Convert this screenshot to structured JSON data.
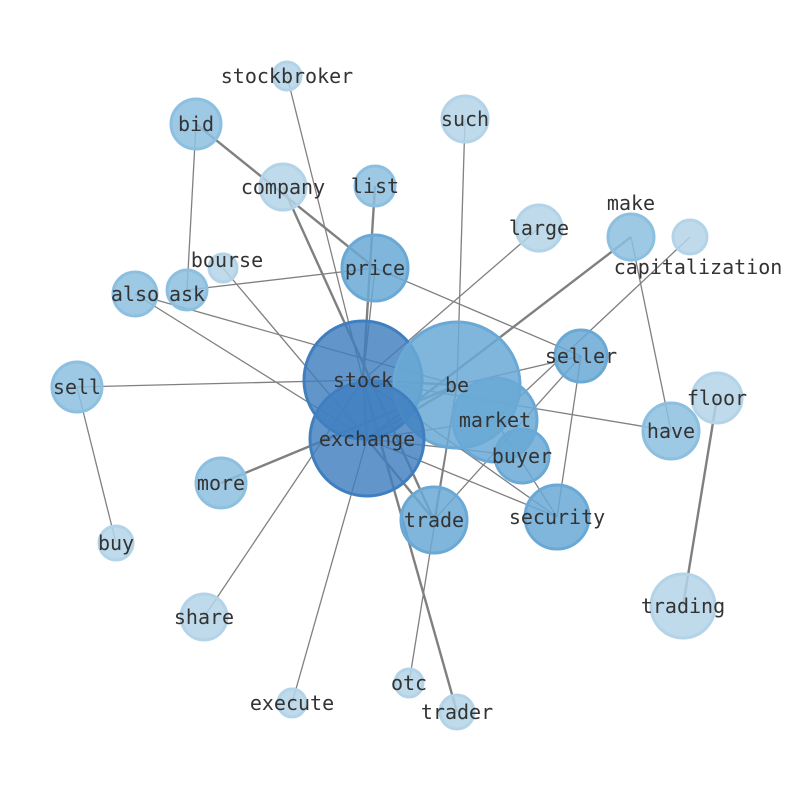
{
  "nodes": [
    "stockbroker",
    "bid",
    "such",
    "company",
    "list",
    "large",
    "make",
    "capitalization",
    "bourse",
    "price",
    "ask",
    "also",
    "sell",
    "stock",
    "be",
    "seller",
    "floor",
    "market",
    "have",
    "exchange",
    "buyer",
    "more",
    "security",
    "trade",
    "buy",
    "trading",
    "share",
    "otc",
    "execute",
    "trader"
  ],
  "edges": [
    [
      "stockbroker",
      "stock"
    ],
    [
      "bid",
      "price"
    ],
    [
      "bid",
      "ask"
    ],
    [
      "such",
      "be"
    ],
    [
      "company",
      "trade"
    ],
    [
      "list",
      "stock"
    ],
    [
      "large",
      "stock"
    ],
    [
      "make",
      "exchange"
    ],
    [
      "make",
      "have"
    ],
    [
      "capitalization",
      "market"
    ],
    [
      "bourse",
      "exchange"
    ],
    [
      "price",
      "ask"
    ],
    [
      "price",
      "stock"
    ],
    [
      "price",
      "seller"
    ],
    [
      "also",
      "be"
    ],
    [
      "also",
      "exchange"
    ],
    [
      "sell",
      "stock"
    ],
    [
      "sell",
      "buy"
    ],
    [
      "seller",
      "be"
    ],
    [
      "seller",
      "security"
    ],
    [
      "seller",
      "trade"
    ],
    [
      "floor",
      "trading"
    ],
    [
      "have",
      "stock"
    ],
    [
      "more",
      "be"
    ],
    [
      "share",
      "stock"
    ],
    [
      "execute",
      "exchange"
    ],
    [
      "otc",
      "be"
    ],
    [
      "trader",
      "stock"
    ],
    [
      "trade",
      "exchange"
    ],
    [
      "trade",
      "be"
    ],
    [
      "security",
      "stock"
    ],
    [
      "security",
      "exchange"
    ],
    [
      "security",
      "market"
    ],
    [
      "buyer",
      "exchange"
    ],
    [
      "stock",
      "exchange"
    ],
    [
      "stock",
      "be"
    ],
    [
      "exchange",
      "market"
    ],
    [
      "exchange",
      "be"
    ]
  ],
  "colors": {
    "light": "#b3d3e8",
    "mid": "#8cbfe0",
    "strong": "#6aa9d6",
    "dark": "#3f7fc0",
    "edge": "#808080",
    "label": "#333333"
  }
}
